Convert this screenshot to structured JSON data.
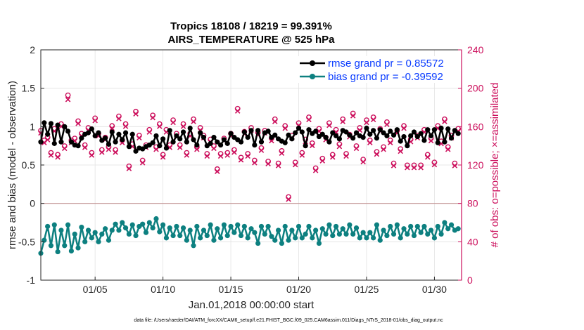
{
  "chart_data": {
    "type": "line",
    "title": "Tropics 18108 / 18219 = 99.391%",
    "subtitle": "AIRS_TEMPERATURE @ 525 hPa",
    "xlabel": "Jan.01,2018 00:00:00 start",
    "ylabel_left": "rmse and bias (model - observation)",
    "ylabel_right": "# of obs: o=possible; ×=assimilated",
    "xlim": [
      1,
      32
    ],
    "ylim_left": [
      -1,
      2
    ],
    "ylim_right": [
      0,
      240
    ],
    "xtick_values": [
      5,
      10,
      15,
      20,
      25,
      30
    ],
    "xtick_labels": [
      "01/05",
      "01/10",
      "01/15",
      "01/20",
      "01/25",
      "01/30"
    ],
    "ytick_left_values": [
      -1,
      -0.5,
      0,
      0.5,
      1,
      1.5,
      2
    ],
    "ytick_left_labels": [
      "-1",
      "-0.5",
      "0",
      "0.5",
      "1",
      "1.5",
      "2"
    ],
    "ytick_right_values": [
      0,
      40,
      80,
      120,
      160,
      200,
      240
    ],
    "ytick_right_labels": [
      "0",
      "40",
      "80",
      "120",
      "160",
      "200",
      "240"
    ],
    "zero_line": 0,
    "grid": true,
    "legend_position": "top-right",
    "series": [
      {
        "name": "rmse grand pr = 0.85572",
        "color": "#000000",
        "axis": "left",
        "x": [
          1.0,
          1.25,
          1.5,
          1.75,
          2.0,
          2.25,
          2.5,
          2.75,
          3.0,
          3.25,
          3.5,
          3.75,
          4.0,
          4.25,
          4.5,
          4.75,
          5.0,
          5.25,
          5.5,
          5.75,
          6.0,
          6.25,
          6.5,
          6.75,
          7.0,
          7.25,
          7.5,
          7.75,
          8.0,
          8.25,
          8.5,
          8.75,
          9.0,
          9.25,
          9.5,
          9.75,
          10.0,
          10.25,
          10.5,
          10.75,
          11.0,
          11.25,
          11.5,
          11.75,
          12.0,
          12.25,
          12.5,
          12.75,
          13.0,
          13.25,
          13.5,
          13.75,
          14.0,
          14.25,
          14.5,
          14.75,
          15.0,
          15.25,
          15.5,
          15.75,
          16.0,
          16.25,
          16.5,
          16.75,
          17.0,
          17.25,
          17.5,
          17.75,
          18.0,
          18.25,
          18.5,
          18.75,
          19.0,
          19.25,
          19.5,
          19.75,
          20.0,
          20.25,
          20.5,
          20.75,
          21.0,
          21.25,
          21.5,
          21.75,
          22.0,
          22.25,
          22.5,
          22.75,
          23.0,
          23.25,
          23.5,
          23.75,
          24.0,
          24.25,
          24.5,
          24.75,
          25.0,
          25.25,
          25.5,
          25.75,
          26.0,
          26.25,
          26.5,
          26.75,
          27.0,
          27.25,
          27.5,
          27.75,
          28.0,
          28.25,
          28.5,
          28.75,
          29.0,
          29.25,
          29.5,
          29.75,
          30.0,
          30.25,
          30.5,
          30.75,
          31.0,
          31.25,
          31.5,
          31.75
        ],
        "values": [
          0.8,
          1.05,
          0.9,
          1.04,
          0.78,
          1.02,
          0.8,
          1.0,
          0.94,
          0.8,
          0.76,
          0.75,
          0.85,
          0.9,
          0.92,
          0.97,
          0.88,
          0.92,
          0.82,
          0.85,
          0.77,
          0.93,
          0.8,
          0.9,
          0.83,
          0.92,
          0.74,
          0.9,
          0.68,
          0.72,
          0.71,
          0.74,
          0.76,
          0.79,
          0.88,
          0.75,
          0.84,
          0.72,
          0.95,
          0.8,
          0.88,
          0.84,
          0.93,
          0.8,
          0.98,
          0.83,
          0.76,
          0.92,
          0.86,
          0.75,
          0.78,
          0.86,
          0.8,
          0.76,
          0.83,
          0.78,
          0.91,
          0.86,
          0.83,
          0.8,
          0.93,
          0.86,
          0.95,
          0.76,
          0.95,
          0.8,
          0.92,
          0.94,
          0.86,
          0.89,
          0.84,
          0.81,
          0.79,
          0.89,
          0.84,
          0.92,
          0.98,
          0.93,
          0.75,
          0.96,
          0.91,
          0.94,
          0.87,
          0.9,
          0.86,
          0.8,
          0.92,
          0.88,
          0.84,
          0.95,
          0.93,
          0.89,
          0.85,
          0.92,
          0.88,
          0.86,
          0.98,
          0.9,
          0.95,
          0.85,
          0.96,
          0.92,
          0.88,
          0.94,
          0.89,
          0.96,
          0.81,
          0.87,
          0.75,
          0.88,
          0.93,
          0.87,
          0.91,
          0.82,
          0.96,
          0.88,
          0.96,
          0.79,
          0.98,
          0.8,
          0.97,
          0.85,
          0.95,
          0.91
        ]
      },
      {
        "name": "bias grand pr = -0.39592",
        "color": "#0d8080",
        "axis": "left",
        "x": [
          1.0,
          1.25,
          1.5,
          1.75,
          2.0,
          2.25,
          2.5,
          2.75,
          3.0,
          3.25,
          3.5,
          3.75,
          4.0,
          4.25,
          4.5,
          4.75,
          5.0,
          5.25,
          5.5,
          5.75,
          6.0,
          6.25,
          6.5,
          6.75,
          7.0,
          7.25,
          7.5,
          7.75,
          8.0,
          8.25,
          8.5,
          8.75,
          9.0,
          9.25,
          9.5,
          9.75,
          10.0,
          10.25,
          10.5,
          10.75,
          11.0,
          11.25,
          11.5,
          11.75,
          12.0,
          12.25,
          12.5,
          12.75,
          13.0,
          13.25,
          13.5,
          13.75,
          14.0,
          14.25,
          14.5,
          14.75,
          15.0,
          15.25,
          15.5,
          15.75,
          16.0,
          16.25,
          16.5,
          16.75,
          17.0,
          17.25,
          17.5,
          17.75,
          18.0,
          18.25,
          18.5,
          18.75,
          19.0,
          19.25,
          19.5,
          19.75,
          20.0,
          20.25,
          20.5,
          20.75,
          21.0,
          21.25,
          21.5,
          21.75,
          22.0,
          22.25,
          22.5,
          22.75,
          23.0,
          23.25,
          23.5,
          23.75,
          24.0,
          24.25,
          24.5,
          24.75,
          25.0,
          25.25,
          25.5,
          25.75,
          26.0,
          26.25,
          26.5,
          26.75,
          27.0,
          27.25,
          27.5,
          27.75,
          28.0,
          28.25,
          28.5,
          28.75,
          29.0,
          29.25,
          29.5,
          29.75,
          30.0,
          30.25,
          30.5,
          30.75,
          31.0,
          31.25,
          31.5,
          31.75
        ],
        "values": [
          -0.65,
          -0.48,
          -0.3,
          -0.55,
          -0.28,
          -0.63,
          -0.35,
          -0.55,
          -0.28,
          -0.62,
          -0.4,
          -0.58,
          -0.31,
          -0.5,
          -0.35,
          -0.45,
          -0.38,
          -0.5,
          -0.4,
          -0.33,
          -0.48,
          -0.35,
          -0.27,
          -0.35,
          -0.25,
          -0.32,
          -0.4,
          -0.28,
          -0.42,
          -0.3,
          -0.27,
          -0.38,
          -0.25,
          -0.32,
          -0.2,
          -0.37,
          -0.28,
          -0.45,
          -0.32,
          -0.42,
          -0.3,
          -0.42,
          -0.32,
          -0.48,
          -0.35,
          -0.55,
          -0.3,
          -0.45,
          -0.35,
          -0.42,
          -0.28,
          -0.48,
          -0.33,
          -0.45,
          -0.28,
          -0.42,
          -0.3,
          -0.38,
          -0.28,
          -0.42,
          -0.3,
          -0.45,
          -0.33,
          -0.38,
          -0.52,
          -0.3,
          -0.4,
          -0.3,
          -0.43,
          -0.48,
          -0.35,
          -0.52,
          -0.3,
          -0.48,
          -0.35,
          -0.45,
          -0.3,
          -0.45,
          -0.4,
          -0.3,
          -0.45,
          -0.35,
          -0.52,
          -0.33,
          -0.4,
          -0.28,
          -0.42,
          -0.3,
          -0.4,
          -0.33,
          -0.4,
          -0.28,
          -0.4,
          -0.32,
          -0.45,
          -0.38,
          -0.45,
          -0.38,
          -0.45,
          -0.28,
          -0.48,
          -0.35,
          -0.42,
          -0.3,
          -0.4,
          -0.28,
          -0.45,
          -0.33,
          -0.4,
          -0.3,
          -0.42,
          -0.3,
          -0.38,
          -0.3,
          -0.4,
          -0.35,
          -0.45,
          -0.3,
          -0.4,
          -0.25,
          -0.33,
          -0.28,
          -0.35,
          -0.33
        ]
      },
      {
        "name": "# obs possible (o)",
        "color": "#cc0f5c",
        "axis": "right",
        "x": [
          1.0,
          1.25,
          1.5,
          1.75,
          2.0,
          2.25,
          2.5,
          2.75,
          3.0,
          3.25,
          3.5,
          3.75,
          4.0,
          4.25,
          4.5,
          4.75,
          5.0,
          5.25,
          5.5,
          5.75,
          6.0,
          6.25,
          6.5,
          6.75,
          7.0,
          7.25,
          7.5,
          7.75,
          8.0,
          8.25,
          8.5,
          8.75,
          9.0,
          9.25,
          9.5,
          9.75,
          10.0,
          10.25,
          10.5,
          10.75,
          11.0,
          11.25,
          11.5,
          11.75,
          12.0,
          12.25,
          12.5,
          12.75,
          13.0,
          13.25,
          13.5,
          13.75,
          14.0,
          14.25,
          14.5,
          14.75,
          15.0,
          15.25,
          15.5,
          15.75,
          16.0,
          16.25,
          16.5,
          16.75,
          17.0,
          17.25,
          17.5,
          17.75,
          18.0,
          18.25,
          18.5,
          18.75,
          19.0,
          19.25,
          19.5,
          19.75,
          20.0,
          20.25,
          20.5,
          20.75,
          21.0,
          21.25,
          21.5,
          21.75,
          22.0,
          22.25,
          22.5,
          22.75,
          23.0,
          23.25,
          23.5,
          23.75,
          24.0,
          24.25,
          24.5,
          24.75,
          25.0,
          25.25,
          25.5,
          25.75,
          26.0,
          26.25,
          26.5,
          26.75,
          27.0,
          27.25,
          27.5,
          27.75,
          28.0,
          28.25,
          28.5,
          28.75,
          29.0,
          29.25,
          29.5,
          29.75,
          30.0,
          30.25,
          30.5,
          30.75,
          31.0,
          31.25,
          31.5,
          31.75
        ],
        "values": [
          155,
          145,
          148,
          132,
          157,
          130,
          162,
          139,
          192,
          145,
          147,
          165,
          152,
          140,
          158,
          132,
          168,
          152,
          135,
          148,
          138,
          160,
          135,
          170,
          145,
          162,
          118,
          141,
          175,
          150,
          124,
          140,
          156,
          171,
          138,
          162,
          130,
          156,
          140,
          166,
          152,
          140,
          162,
          132,
          152,
          167,
          138,
          158,
          150,
          131,
          146,
          139,
          115,
          131,
          147,
          132,
          152,
          135,
          178,
          127,
          154,
          131,
          158,
          124,
          153,
          137,
          155,
          123,
          147,
          167,
          121,
          134,
          160,
          86,
          150,
          122,
          163,
          132,
          146,
          169,
          142,
          116,
          157,
          126,
          148,
          163,
          130,
          156,
          141,
          167,
          131,
          151,
          173,
          139,
          158,
          125,
          166,
          145,
          169,
          133,
          157,
          138,
          164,
          145,
          121,
          155,
          136,
          160,
          119,
          146,
          119,
          150,
          119,
          156,
          130,
          147,
          122,
          160,
          144,
          167,
          138,
          150,
          121,
          157
        ]
      },
      {
        "name": "# obs assimilated (×)",
        "color": "#cc0f5c",
        "axis": "right",
        "x": [
          1.0,
          1.25,
          1.5,
          1.75,
          2.0,
          2.25,
          2.5,
          2.75,
          3.0,
          3.25,
          3.5,
          3.75,
          4.0,
          4.25,
          4.5,
          4.75,
          5.0,
          5.25,
          5.5,
          5.75,
          6.0,
          6.25,
          6.5,
          6.75,
          7.0,
          7.25,
          7.5,
          7.75,
          8.0,
          8.25,
          8.5,
          8.75,
          9.0,
          9.25,
          9.5,
          9.75,
          10.0,
          10.25,
          10.5,
          10.75,
          11.0,
          11.25,
          11.5,
          11.75,
          12.0,
          12.25,
          12.5,
          12.75,
          13.0,
          13.25,
          13.5,
          13.75,
          14.0,
          14.25,
          14.5,
          14.75,
          15.0,
          15.25,
          15.5,
          15.75,
          16.0,
          16.25,
          16.5,
          16.75,
          17.0,
          17.25,
          17.5,
          17.75,
          18.0,
          18.25,
          18.5,
          18.75,
          19.0,
          19.25,
          19.5,
          19.75,
          20.0,
          20.25,
          20.5,
          20.75,
          21.0,
          21.25,
          21.5,
          21.75,
          22.0,
          22.25,
          22.5,
          22.75,
          23.0,
          23.25,
          23.5,
          23.75,
          24.0,
          24.25,
          24.5,
          24.75,
          25.0,
          25.25,
          25.5,
          25.75,
          26.0,
          26.25,
          26.5,
          26.75,
          27.0,
          27.25,
          27.5,
          27.75,
          28.0,
          28.25,
          28.5,
          28.75,
          29.0,
          29.25,
          29.5,
          29.75,
          30.0,
          30.25,
          30.5,
          30.75,
          31.0,
          31.25,
          31.5,
          31.75
        ],
        "values": [
          154,
          144,
          147,
          131,
          156,
          129,
          161,
          138,
          189,
          144,
          146,
          164,
          151,
          139,
          157,
          131,
          167,
          151,
          134,
          147,
          137,
          159,
          134,
          169,
          144,
          161,
          117,
          140,
          174,
          149,
          123,
          139,
          155,
          170,
          137,
          161,
          129,
          155,
          139,
          165,
          151,
          139,
          161,
          131,
          151,
          166,
          137,
          157,
          149,
          130,
          145,
          138,
          114,
          130,
          146,
          131,
          151,
          134,
          177,
          126,
          153,
          130,
          157,
          123,
          152,
          136,
          154,
          122,
          146,
          166,
          120,
          133,
          159,
          85,
          149,
          121,
          162,
          131,
          145,
          168,
          141,
          115,
          156,
          125,
          147,
          162,
          129,
          155,
          140,
          166,
          130,
          150,
          172,
          138,
          157,
          124,
          165,
          144,
          168,
          132,
          156,
          137,
          163,
          144,
          120,
          154,
          135,
          159,
          118,
          145,
          118,
          149,
          118,
          155,
          129,
          146,
          121,
          159,
          143,
          166,
          137,
          149,
          120,
          156
        ]
      }
    ],
    "footnote": "data file: /Users/raeder/DAI/ATM_forcXX/CAM6_setup/f.e21.FHIST_BGC.f09_025.CAM6assim.011/Diags_NTrS_2018-01/obs_diag_output.nc"
  }
}
